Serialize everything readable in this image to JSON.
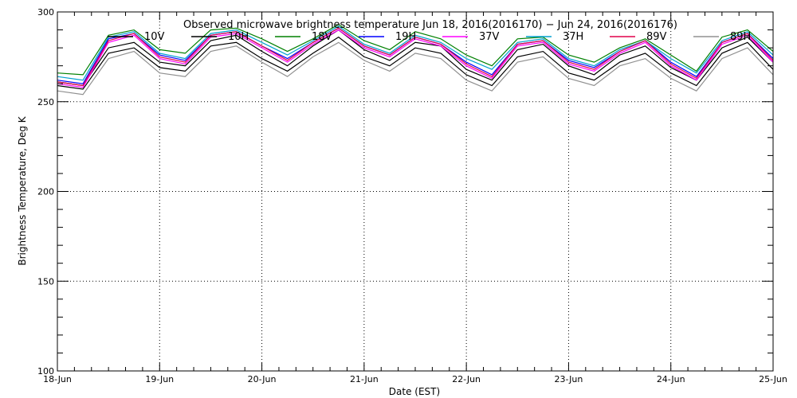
{
  "chart_data": {
    "type": "line",
    "title": "Observed microwave brightness temperature Jun 18, 2016(2016170) − Jun 24, 2016(2016176)",
    "xlabel": "Date (EST)",
    "ylabel": "Brightness Temperature, Deg K",
    "ylim": [
      100,
      300
    ],
    "yticks": [
      100,
      150,
      200,
      250,
      300
    ],
    "xlim": [
      "2016-06-18",
      "2016-06-25"
    ],
    "xticks": [
      "18-Jun",
      "19-Jun",
      "20-Jun",
      "21-Jun",
      "22-Jun",
      "23-Jun",
      "24-Jun",
      "25-Jun"
    ],
    "grid": true,
    "legend_position": "top",
    "x": [
      "2016-06-18 00:00",
      "2016-06-18 06:00",
      "2016-06-18 12:00",
      "2016-06-18 18:00",
      "2016-06-19 00:00",
      "2016-06-19 06:00",
      "2016-06-19 12:00",
      "2016-06-19 18:00",
      "2016-06-20 00:00",
      "2016-06-20 06:00",
      "2016-06-20 12:00",
      "2016-06-20 18:00",
      "2016-06-21 00:00",
      "2016-06-21 06:00",
      "2016-06-21 12:00",
      "2016-06-21 18:00",
      "2016-06-22 00:00",
      "2016-06-22 06:00",
      "2016-06-22 12:00",
      "2016-06-22 18:00",
      "2016-06-23 00:00",
      "2016-06-23 06:00",
      "2016-06-23 12:00",
      "2016-06-23 18:00",
      "2016-06-24 00:00",
      "2016-06-24 06:00",
      "2016-06-24 12:00",
      "2016-06-24 18:00",
      "2016-06-25 00:00"
    ],
    "series": [
      {
        "name": "10V",
        "color": "#000000",
        "values": [
          261,
          259,
          280,
          283,
          272,
          270,
          284,
          287,
          278,
          270,
          281,
          290,
          279,
          273,
          283,
          281,
          268,
          262,
          279,
          282,
          270,
          265,
          276,
          281,
          269,
          262,
          280,
          286,
          272
        ]
      },
      {
        "name": "10H",
        "color": "#000000",
        "values": [
          259,
          257,
          277,
          280,
          269,
          267,
          281,
          283,
          274,
          267,
          277,
          286,
          275,
          270,
          280,
          277,
          265,
          259,
          275,
          278,
          266,
          262,
          272,
          277,
          266,
          259,
          277,
          283,
          268
        ]
      },
      {
        "name": "18V",
        "color": "#008000",
        "values": [
          266,
          265,
          287,
          290,
          279,
          277,
          290,
          291,
          285,
          278,
          285,
          293,
          284,
          279,
          289,
          285,
          276,
          270,
          285,
          286,
          276,
          272,
          280,
          285,
          276,
          267,
          286,
          290,
          278
        ]
      },
      {
        "name": "19H",
        "color": "#0000ff",
        "values": [
          262,
          260,
          285,
          288,
          276,
          273,
          287,
          289,
          281,
          274,
          283,
          291,
          281,
          276,
          286,
          282,
          272,
          265,
          282,
          284,
          273,
          269,
          278,
          284,
          272,
          264,
          283,
          288,
          274
        ]
      },
      {
        "name": "37V",
        "color": "#ff00ff",
        "values": [
          260,
          258,
          283,
          287,
          274,
          271,
          286,
          288,
          280,
          272,
          282,
          290,
          280,
          275,
          285,
          281,
          270,
          263,
          281,
          283,
          271,
          267,
          277,
          283,
          270,
          262,
          282,
          287,
          272
        ]
      },
      {
        "name": "37H",
        "color": "#00a0d0",
        "values": [
          264,
          262,
          286,
          289,
          277,
          274,
          288,
          290,
          283,
          276,
          284,
          292,
          282,
          277,
          287,
          283,
          274,
          268,
          283,
          285,
          274,
          270,
          279,
          284,
          274,
          266,
          284,
          289,
          276
        ]
      },
      {
        "name": "89V",
        "color": "#e0004a",
        "values": [
          261,
          259,
          284,
          288,
          275,
          272,
          287,
          289,
          281,
          273,
          283,
          291,
          281,
          276,
          286,
          282,
          271,
          264,
          282,
          284,
          272,
          268,
          278,
          284,
          271,
          263,
          283,
          288,
          273
        ]
      },
      {
        "name": "89H",
        "color": "#909090",
        "values": [
          256,
          254,
          274,
          278,
          266,
          264,
          278,
          281,
          272,
          264,
          275,
          283,
          273,
          267,
          277,
          274,
          262,
          256,
          272,
          275,
          263,
          259,
          270,
          274,
          263,
          256,
          274,
          280,
          265
        ]
      }
    ]
  }
}
